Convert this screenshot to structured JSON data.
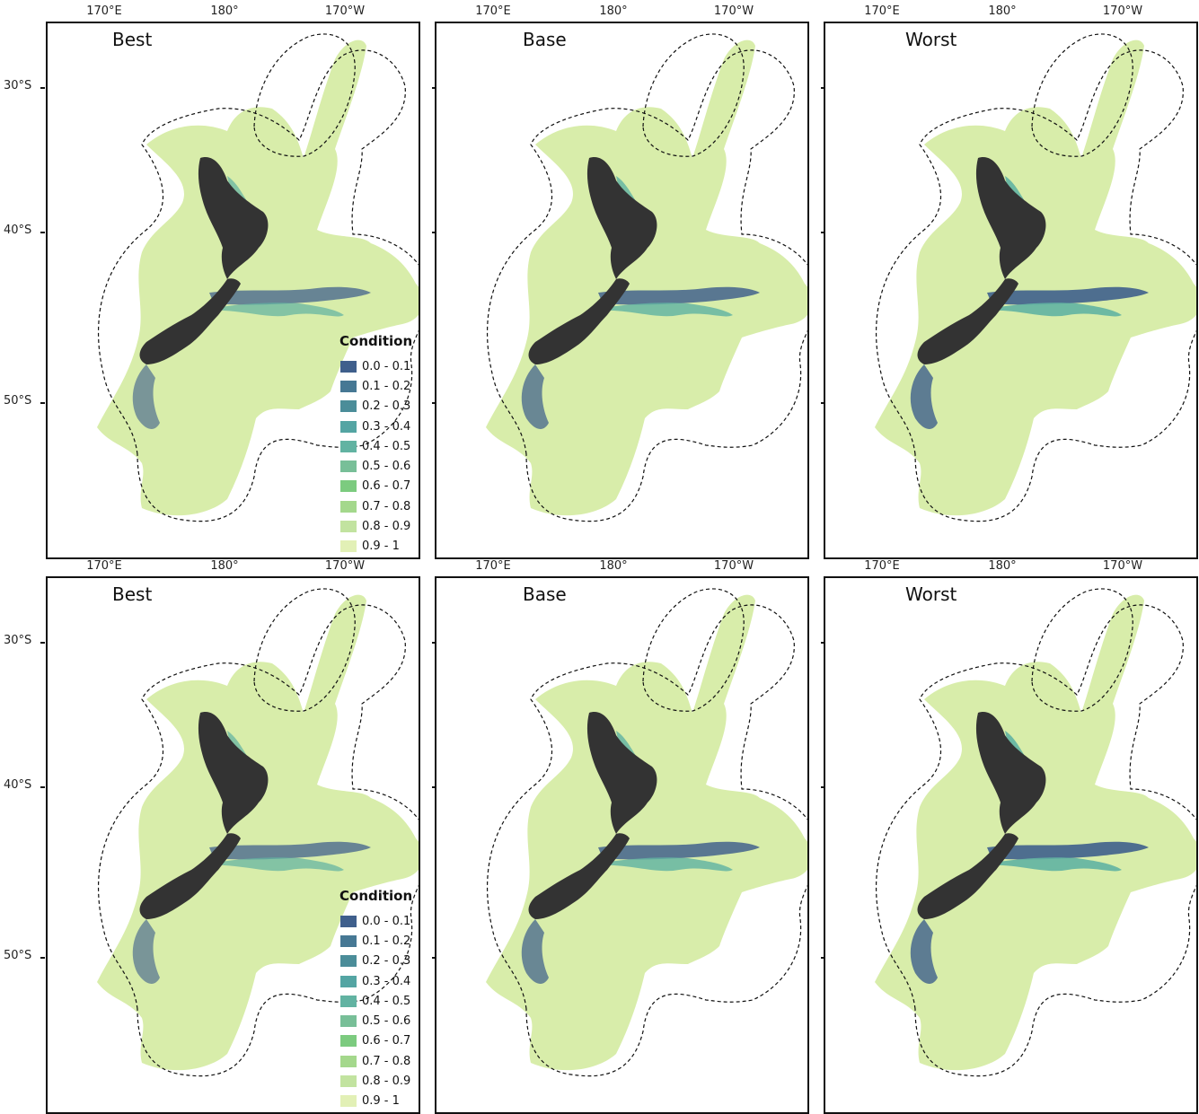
{
  "figure": {
    "panels": [
      {
        "title": "Best"
      },
      {
        "title": "Base"
      },
      {
        "title": "Worst"
      },
      {
        "title": "Best"
      },
      {
        "title": "Base"
      },
      {
        "title": "Worst"
      }
    ],
    "lon_labels": [
      "170°E",
      "180°",
      "170°W"
    ],
    "lat_labels": [
      "30°S",
      "40°S",
      "50°S"
    ]
  },
  "legend": {
    "title": "Condition",
    "items": [
      {
        "label": "0.0 - 0.1",
        "color": "#3f5f8c"
      },
      {
        "label": "0.1 - 0.2",
        "color": "#467894"
      },
      {
        "label": "0.2 - 0.3",
        "color": "#4b8d99"
      },
      {
        "label": "0.3 - 0.4",
        "color": "#54a5a3"
      },
      {
        "label": "0.4 - 0.5",
        "color": "#62b3a2"
      },
      {
        "label": "0.5 - 0.6",
        "color": "#78bf98"
      },
      {
        "label": "0.6 - 0.7",
        "color": "#7ccb7f"
      },
      {
        "label": "0.7 - 0.8",
        "color": "#a4d88c"
      },
      {
        "label": "0.8 - 0.9",
        "color": "#c2e3a0"
      },
      {
        "label": "0.9 - 1",
        "color": "#e2f0b6"
      }
    ]
  },
  "colors": {
    "land": "#333333",
    "ocean_condition_high": "#d8edaa",
    "impacted_dark": "#3f5f8c",
    "impacted_mid": "#62b3a2",
    "boundary": "#111111"
  }
}
